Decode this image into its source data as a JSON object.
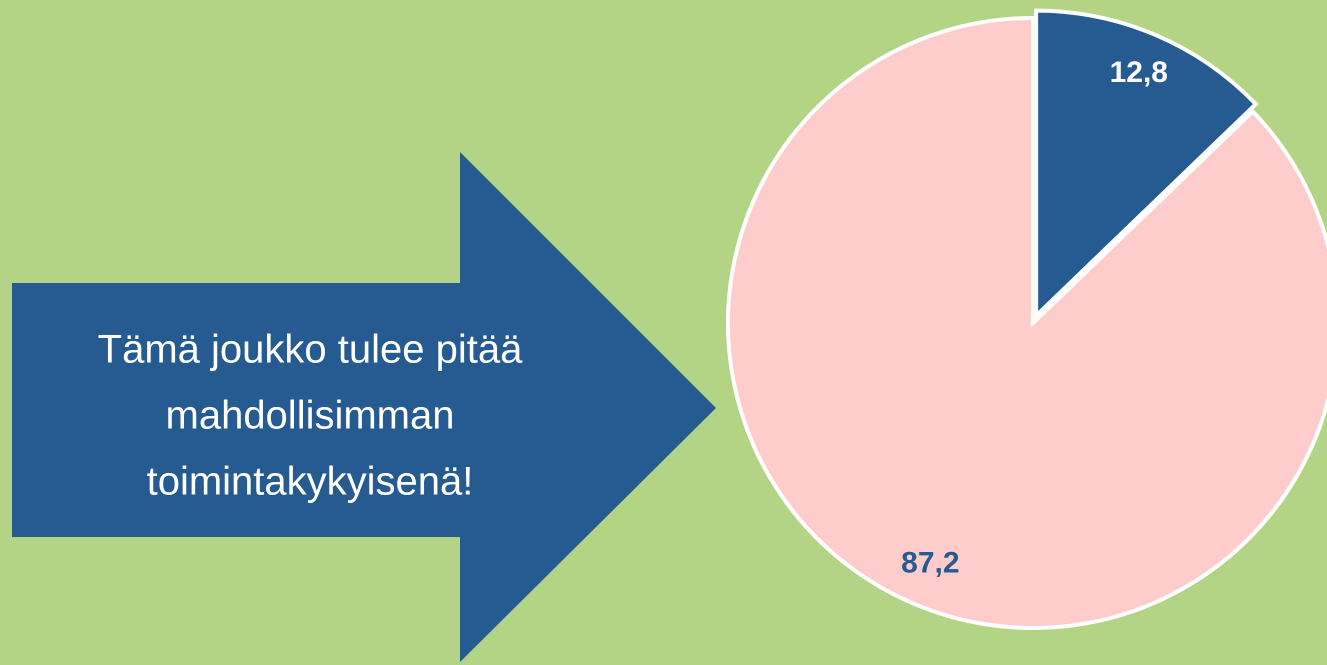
{
  "chart_data": {
    "type": "pie",
    "values": [
      12.8,
      87.2
    ],
    "value_labels": [
      "12,8",
      "87,2"
    ],
    "colors": [
      "#265b91",
      "#ffcccc"
    ],
    "label_colors": [
      "#ffffff",
      "#265b91"
    ],
    "annotation": [
      "Tämä joukko tulee pitää",
      "mahdollisimman",
      "toimintakykyisenä!"
    ],
    "annotation_color": "#265b91"
  }
}
